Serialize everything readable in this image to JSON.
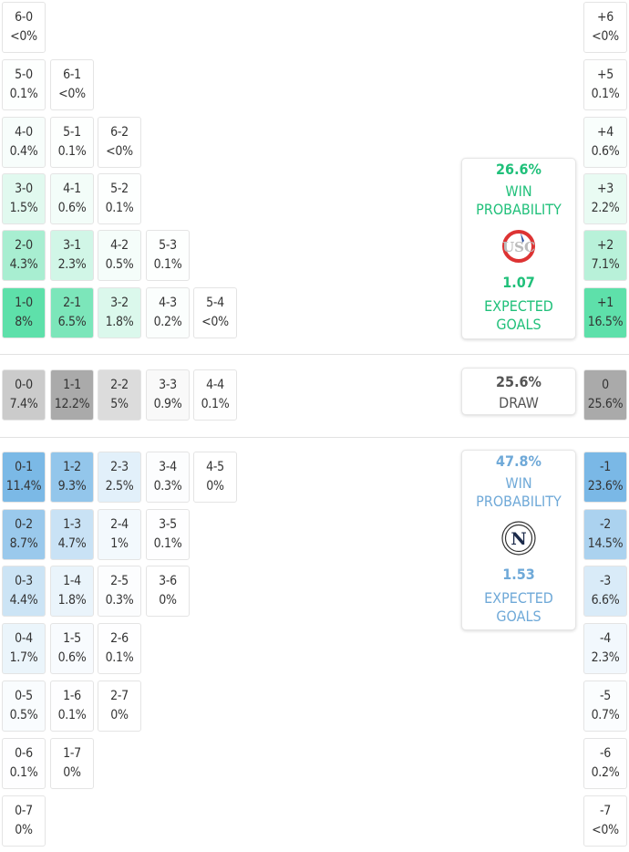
{
  "colors": {
    "home": "#20c07a",
    "away": "#6fa9d8",
    "draw": "#555555",
    "home_cell": [
      94,
      224,
      170
    ],
    "away_cell": [
      122,
      184,
      230
    ],
    "draw_cell": [
      170,
      170,
      170
    ]
  },
  "home_rows": [
    [
      {
        "s": "6-0",
        "p": "<0%"
      }
    ],
    [
      {
        "s": "5-0",
        "p": "0.1%"
      },
      {
        "s": "6-1",
        "p": "<0%"
      }
    ],
    [
      {
        "s": "4-0",
        "p": "0.4%"
      },
      {
        "s": "5-1",
        "p": "0.1%"
      },
      {
        "s": "6-2",
        "p": "<0%"
      }
    ],
    [
      {
        "s": "3-0",
        "p": "1.5%"
      },
      {
        "s": "4-1",
        "p": "0.6%"
      },
      {
        "s": "5-2",
        "p": "0.1%"
      }
    ],
    [
      {
        "s": "2-0",
        "p": "4.3%"
      },
      {
        "s": "3-1",
        "p": "2.3%"
      },
      {
        "s": "4-2",
        "p": "0.5%"
      },
      {
        "s": "5-3",
        "p": "0.1%"
      }
    ],
    [
      {
        "s": "1-0",
        "p": "8%"
      },
      {
        "s": "2-1",
        "p": "6.5%"
      },
      {
        "s": "3-2",
        "p": "1.8%"
      },
      {
        "s": "4-3",
        "p": "0.2%"
      },
      {
        "s": "5-4",
        "p": "<0%"
      }
    ]
  ],
  "draw_row": [
    {
      "s": "0-0",
      "p": "7.4%"
    },
    {
      "s": "1-1",
      "p": "12.2%"
    },
    {
      "s": "2-2",
      "p": "5%"
    },
    {
      "s": "3-3",
      "p": "0.9%"
    },
    {
      "s": "4-4",
      "p": "0.1%"
    }
  ],
  "away_rows": [
    [
      {
        "s": "0-1",
        "p": "11.4%"
      },
      {
        "s": "1-2",
        "p": "9.3%"
      },
      {
        "s": "2-3",
        "p": "2.5%"
      },
      {
        "s": "3-4",
        "p": "0.3%"
      },
      {
        "s": "4-5",
        "p": "0%"
      }
    ],
    [
      {
        "s": "0-2",
        "p": "8.7%"
      },
      {
        "s": "1-3",
        "p": "4.7%"
      },
      {
        "s": "2-4",
        "p": "1%"
      },
      {
        "s": "3-5",
        "p": "0.1%"
      }
    ],
    [
      {
        "s": "0-3",
        "p": "4.4%"
      },
      {
        "s": "1-4",
        "p": "1.8%"
      },
      {
        "s": "2-5",
        "p": "0.3%"
      },
      {
        "s": "3-6",
        "p": "0%"
      }
    ],
    [
      {
        "s": "0-4",
        "p": "1.7%"
      },
      {
        "s": "1-5",
        "p": "0.6%"
      },
      {
        "s": "2-6",
        "p": "0.1%"
      }
    ],
    [
      {
        "s": "0-5",
        "p": "0.5%"
      },
      {
        "s": "1-6",
        "p": "0.1%"
      },
      {
        "s": "2-7",
        "p": "0%"
      }
    ],
    [
      {
        "s": "0-6",
        "p": "0.1%"
      },
      {
        "s": "1-7",
        "p": "0%"
      }
    ],
    [
      {
        "s": "0-7",
        "p": "0%"
      }
    ]
  ],
  "margin_home": [
    {
      "s": "+6",
      "p": "<0%"
    },
    {
      "s": "+5",
      "p": "0.1%"
    },
    {
      "s": "+4",
      "p": "0.6%"
    },
    {
      "s": "+3",
      "p": "2.2%"
    },
    {
      "s": "+2",
      "p": "7.1%"
    },
    {
      "s": "+1",
      "p": "16.5%"
    }
  ],
  "margin_draw": {
    "s": "0",
    "p": "25.6%"
  },
  "margin_away": [
    {
      "s": "-1",
      "p": "23.6%"
    },
    {
      "s": "-2",
      "p": "14.5%"
    },
    {
      "s": "-3",
      "p": "6.6%"
    },
    {
      "s": "-4",
      "p": "2.3%"
    },
    {
      "s": "-5",
      "p": "0.7%"
    },
    {
      "s": "-6",
      "p": "0.2%"
    },
    {
      "s": "-7",
      "p": "<0%"
    }
  ],
  "home_card": {
    "win_pct": "26.6%",
    "win_label_1": "WIN",
    "win_label_2": "PROBABILITY",
    "xg": "1.07",
    "xg_label_1": "EXPECTED",
    "xg_label_2": "GOALS",
    "logo_icon": "cremonese-crest",
    "logo_text": "USC"
  },
  "draw_card": {
    "pct": "25.6%",
    "label": "DRAW"
  },
  "away_card": {
    "win_pct": "47.8%",
    "win_label_1": "WIN",
    "win_label_2": "PROBABILITY",
    "xg": "1.53",
    "xg_label_1": "EXPECTED",
    "xg_label_2": "GOALS",
    "logo_icon": "napoli-crest",
    "logo_text": "N"
  }
}
